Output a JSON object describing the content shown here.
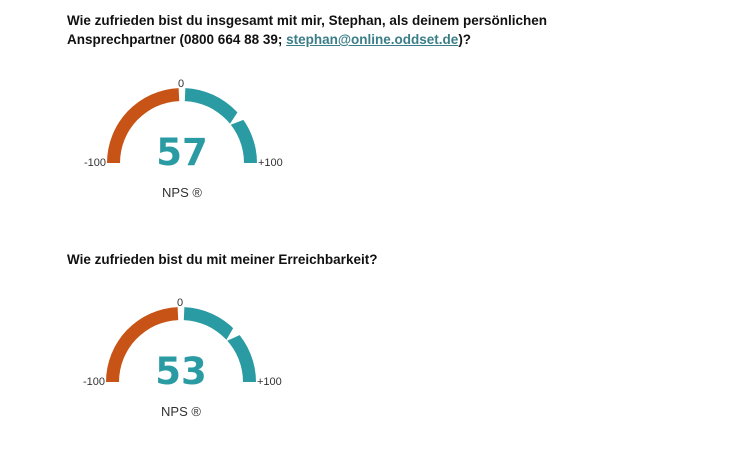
{
  "survey": {
    "q1": {
      "text_before": "Wie zufrieden bist du insgesamt mit mir, Stephan, als deinem persönlichen Ansprechpartner (0800 664 88 39; ",
      "link_text": "stephan@online.oddset.de",
      "text_after": ")?",
      "gauge": {
        "value": 57,
        "value_label": "57",
        "min_label": "-100",
        "mid_label": "0",
        "max_label": "+100",
        "metric_label": "NPS ®"
      }
    },
    "q2": {
      "text": "Wie zufrieden bist du mit meiner Erreichbarkeit?",
      "gauge": {
        "value": 53,
        "value_label": "53",
        "min_label": "-100",
        "mid_label": "0",
        "max_label": "+100",
        "metric_label": "NPS ®"
      }
    }
  },
  "colors": {
    "negative": "#c85316",
    "positive": "#2a9ba3",
    "text": "#111111",
    "link": "#3a7d87"
  }
}
